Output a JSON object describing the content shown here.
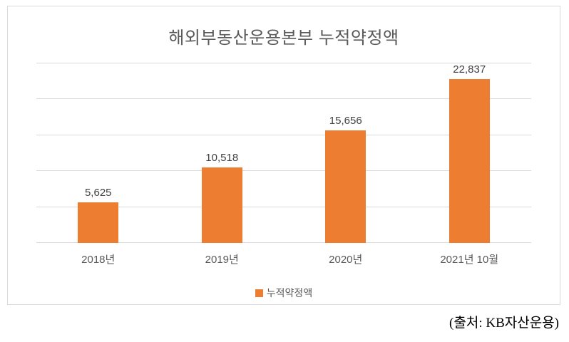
{
  "chart_data": {
    "type": "bar",
    "title": "해외부동산운용본부 누적약정액",
    "categories": [
      "2018년",
      "2019년",
      "2020년",
      "2021년 10월"
    ],
    "series": [
      {
        "name": "누적약정액",
        "values": [
          5625,
          10518,
          15656,
          22837
        ]
      }
    ],
    "value_labels": [
      "5,625",
      "10,518",
      "15,656",
      "22,837"
    ],
    "xlabel": "",
    "ylabel": "",
    "ylim": [
      0,
      25000
    ],
    "grid_step": 5000,
    "grid": true,
    "legend_position": "bottom",
    "bar_color": "#ED7D31"
  },
  "source": "(출처: KB자산운용)"
}
